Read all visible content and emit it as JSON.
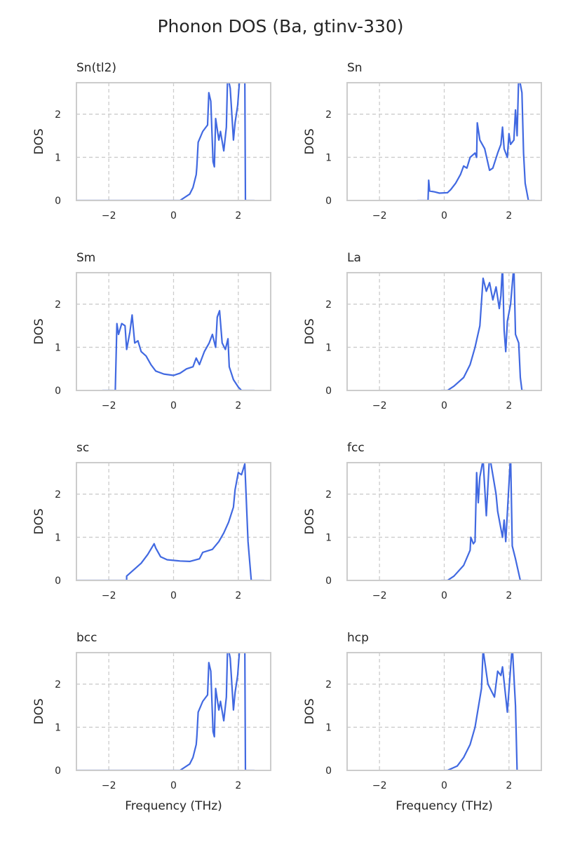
{
  "chart_data": {
    "title": "Phonon DOS (Ba, gtinv-330)",
    "type": "line",
    "line_color": "#4169e1",
    "grid": true,
    "xlim": [
      -3,
      3
    ],
    "ylim": [
      0,
      2.73
    ],
    "xticks": [
      -2,
      0,
      2
    ],
    "yticks": [
      0,
      1,
      2
    ],
    "xtick_labels": [
      "−2",
      "0",
      "2"
    ],
    "ytick_labels": [
      "0",
      "1",
      "2"
    ],
    "xlabel": "Frequency (THz)",
    "ylabel": "DOS",
    "panels": [
      {
        "title": "Sn(tl2)",
        "x": [
          -3,
          0.2,
          0.5,
          0.6,
          0.7,
          0.72,
          0.76,
          0.9,
          1.0,
          1.05,
          1.09,
          1.15,
          1.22,
          1.26,
          1.3,
          1.4,
          1.45,
          1.55,
          1.63,
          1.67,
          1.75,
          1.85,
          1.9,
          1.98,
          2.05,
          2.2,
          2.22,
          2.5
        ],
        "y": [
          0,
          0,
          0.15,
          0.3,
          0.6,
          0.78,
          1.35,
          1.6,
          1.7,
          1.75,
          2.5,
          2.3,
          0.9,
          0.78,
          1.9,
          1.4,
          1.6,
          1.15,
          1.7,
          2.9,
          2.6,
          1.4,
          1.8,
          2.2,
          2.9,
          2.9,
          0,
          0
        ]
      },
      {
        "title": "Sn",
        "x": [
          -0.83,
          -0.5,
          -0.48,
          -0.45,
          -0.3,
          -0.15,
          0.1,
          0.2,
          0.35,
          0.5,
          0.6,
          0.7,
          0.8,
          0.95,
          1.0,
          1.02,
          1.1,
          1.25,
          1.4,
          1.5,
          1.65,
          1.75,
          1.8,
          1.85,
          1.95,
          2.0,
          2.05,
          2.15,
          2.2,
          2.25,
          2.3,
          2.4,
          2.45,
          2.5,
          2.6,
          2.8
        ],
        "y": [
          0,
          0,
          0.47,
          0.22,
          0.2,
          0.17,
          0.18,
          0.25,
          0.4,
          0.6,
          0.8,
          0.75,
          1.0,
          1.1,
          1.0,
          1.8,
          1.4,
          1.2,
          0.7,
          0.75,
          1.1,
          1.3,
          1.7,
          1.2,
          1.0,
          1.55,
          1.3,
          1.4,
          2.1,
          1.5,
          2.9,
          2.5,
          1.1,
          0.4,
          0,
          0
        ]
      },
      {
        "title": "Sm",
        "x": [
          -2.2,
          -1.8,
          -1.75,
          -1.7,
          -1.6,
          -1.5,
          -1.45,
          -1.35,
          -1.28,
          -1.2,
          -1.1,
          -1.0,
          -0.85,
          -0.7,
          -0.55,
          -0.3,
          0,
          0.2,
          0.4,
          0.6,
          0.7,
          0.8,
          0.95,
          1.1,
          1.2,
          1.3,
          1.35,
          1.42,
          1.5,
          1.6,
          1.68,
          1.72,
          1.85,
          2.0,
          2.1,
          2.5
        ],
        "y": [
          0,
          0,
          1.55,
          1.3,
          1.55,
          1.5,
          0.95,
          1.35,
          1.75,
          1.1,
          1.15,
          0.9,
          0.8,
          0.6,
          0.45,
          0.38,
          0.35,
          0.4,
          0.5,
          0.55,
          0.75,
          0.6,
          0.9,
          1.1,
          1.3,
          1.0,
          1.7,
          1.85,
          1.1,
          0.95,
          1.2,
          0.55,
          0.25,
          0.08,
          0,
          0
        ]
      },
      {
        "title": "La",
        "x": [
          -0.1,
          0.1,
          0.3,
          0.6,
          0.8,
          0.95,
          1.1,
          1.2,
          1.3,
          1.4,
          1.5,
          1.6,
          1.7,
          1.75,
          1.8,
          1.85,
          1.9,
          1.95,
          2.05,
          2.15,
          2.2,
          2.3,
          2.35,
          2.4,
          2.5
        ],
        "y": [
          0,
          0,
          0.1,
          0.3,
          0.6,
          1.0,
          1.5,
          2.6,
          2.3,
          2.5,
          2.1,
          2.4,
          1.9,
          2.2,
          2.9,
          1.4,
          0.9,
          1.6,
          2.0,
          2.9,
          1.3,
          1.1,
          0.3,
          0,
          0
        ]
      },
      {
        "title": "sc",
        "x": [
          -3,
          -1.45,
          -1.45,
          -1.3,
          -1.0,
          -0.8,
          -0.6,
          -0.55,
          -0.4,
          -0.2,
          0.2,
          0.5,
          0.8,
          0.9,
          1.2,
          1.4,
          1.55,
          1.7,
          1.85,
          1.9,
          2.0,
          2.1,
          2.2,
          2.3,
          2.4,
          2.8
        ],
        "y": [
          0,
          0,
          0.1,
          0.2,
          0.4,
          0.6,
          0.85,
          0.75,
          0.55,
          0.48,
          0.45,
          0.44,
          0.5,
          0.65,
          0.72,
          0.9,
          1.1,
          1.35,
          1.7,
          2.1,
          2.5,
          2.45,
          2.7,
          0.9,
          0,
          0
        ]
      },
      {
        "title": "fcc",
        "x": [
          -0.1,
          0.1,
          0.3,
          0.6,
          0.8,
          0.82,
          0.9,
          0.95,
          1.0,
          1.05,
          1.1,
          1.2,
          1.3,
          1.4,
          1.6,
          1.65,
          1.8,
          1.85,
          1.9,
          2.05,
          2.1,
          2.2,
          2.35,
          2.6
        ],
        "y": [
          0,
          0,
          0.1,
          0.35,
          0.7,
          1.0,
          0.85,
          0.9,
          2.5,
          1.8,
          2.4,
          2.8,
          1.5,
          2.9,
          2.0,
          1.6,
          1.0,
          1.4,
          0.9,
          2.9,
          0.8,
          0.5,
          0,
          0
        ]
      },
      {
        "title": "bcc",
        "x": [
          -3,
          0.2,
          0.5,
          0.6,
          0.7,
          0.72,
          0.76,
          0.9,
          1.0,
          1.05,
          1.09,
          1.15,
          1.22,
          1.26,
          1.3,
          1.4,
          1.45,
          1.55,
          1.63,
          1.67,
          1.75,
          1.85,
          1.9,
          1.98,
          2.05,
          2.2,
          2.22,
          2.5
        ],
        "y": [
          0,
          0,
          0.15,
          0.3,
          0.6,
          0.78,
          1.35,
          1.6,
          1.7,
          1.75,
          2.5,
          2.3,
          0.9,
          0.78,
          1.9,
          1.4,
          1.6,
          1.15,
          1.7,
          2.9,
          2.6,
          1.4,
          1.8,
          2.2,
          2.9,
          2.9,
          0,
          0
        ]
      },
      {
        "title": "hcp",
        "x": [
          0,
          0.1,
          0.4,
          0.6,
          0.8,
          0.95,
          1.15,
          1.2,
          1.35,
          1.55,
          1.65,
          1.75,
          1.8,
          1.9,
          1.95,
          2.1,
          2.2,
          2.25
        ],
        "y": [
          0,
          0,
          0.1,
          0.3,
          0.6,
          1.0,
          1.9,
          2.8,
          2.0,
          1.7,
          2.3,
          2.2,
          2.4,
          1.7,
          1.35,
          2.9,
          1.5,
          0
        ]
      }
    ]
  }
}
